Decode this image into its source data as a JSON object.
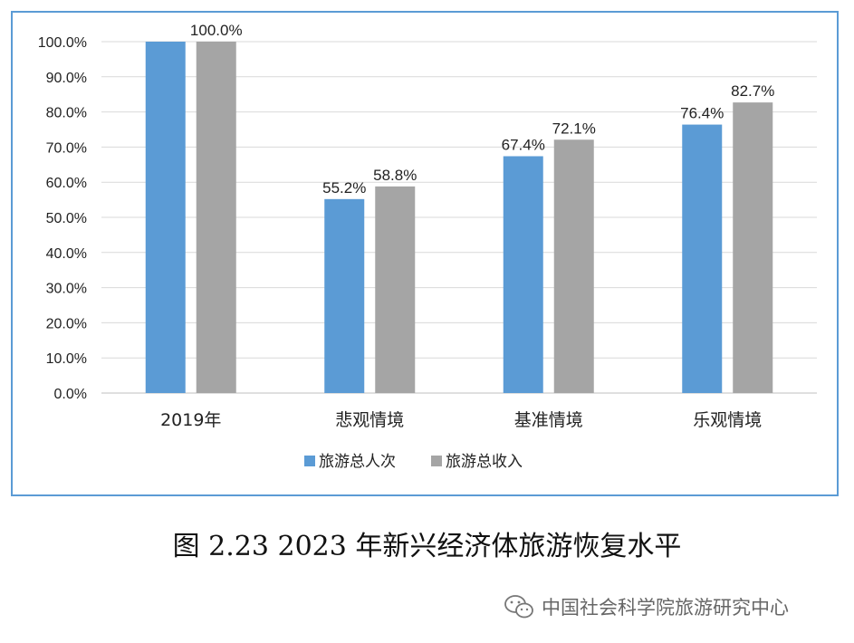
{
  "chart_data": {
    "type": "bar",
    "categories": [
      "2019年",
      "悲观情境",
      "基准情境",
      "乐观情境"
    ],
    "series": [
      {
        "name": "旅游总人次",
        "values": [
          100.0,
          55.2,
          67.4,
          76.4
        ],
        "labels": [
          "",
          "55.2%",
          "67.4%",
          "76.4%"
        ],
        "color": "#5b9bd5"
      },
      {
        "name": "旅游总收入",
        "values": [
          100.0,
          58.8,
          72.1,
          82.7
        ],
        "labels": [
          "100.0%",
          "58.8%",
          "72.1%",
          "82.7%"
        ],
        "color": "#a5a5a5"
      }
    ],
    "ylim": [
      0,
      100
    ],
    "y_ticks": [
      "0.0%",
      "10.0%",
      "20.0%",
      "30.0%",
      "40.0%",
      "50.0%",
      "60.0%",
      "70.0%",
      "80.0%",
      "90.0%",
      "100.0%"
    ],
    "legend_position": "bottom",
    "grid": true
  },
  "caption": "图 2.23 2023 年新兴经济体旅游恢复水平",
  "watermark": {
    "text": "中国社会科学院旅游研究中心",
    "icon": "wechat-icon"
  }
}
